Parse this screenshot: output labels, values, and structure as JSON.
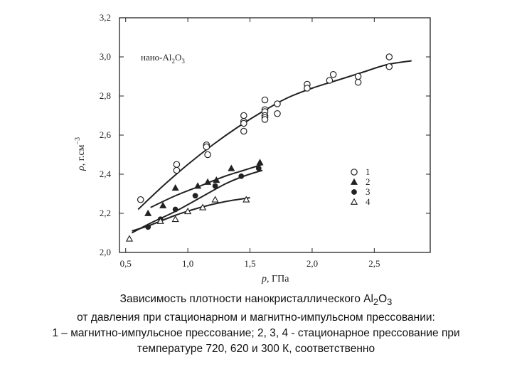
{
  "chart_data": {
    "type": "scatter",
    "inset_label": "нано-Al",
    "inset_sub": "2",
    "inset_O": "O",
    "inset_sub2": "3",
    "xlabel_var": "p",
    "xlabel_unit": ", ГПа",
    "ylabel_var": "ρ",
    "ylabel_unit": ", г.см",
    "ylabel_exp": "−3",
    "xlim": [
      0.45,
      2.95
    ],
    "ylim": [
      2.0,
      3.2
    ],
    "xticks": [
      {
        "v": 0.5,
        "label": "0,5"
      },
      {
        "v": 1.0,
        "label": "1,0"
      },
      {
        "v": 1.5,
        "label": "1,5"
      },
      {
        "v": 2.0,
        "label": "2,0"
      },
      {
        "v": 2.5,
        "label": "2,5"
      }
    ],
    "yticks": [
      {
        "v": 2.0,
        "label": "2,0"
      },
      {
        "v": 2.2,
        "label": "2,2"
      },
      {
        "v": 2.4,
        "label": "2,4"
      },
      {
        "v": 2.6,
        "label": "2,6"
      },
      {
        "v": 2.8,
        "label": "2,8"
      },
      {
        "v": 3.0,
        "label": "3,0"
      },
      {
        "v": 3.2,
        "label": "3,2"
      }
    ],
    "series": [
      {
        "name": "1",
        "marker": "circle-open",
        "points": [
          [
            0.62,
            2.27
          ],
          [
            0.91,
            2.45
          ],
          [
            0.91,
            2.42
          ],
          [
            1.15,
            2.55
          ],
          [
            1.15,
            2.54
          ],
          [
            1.16,
            2.5
          ],
          [
            1.45,
            2.7
          ],
          [
            1.45,
            2.67
          ],
          [
            1.45,
            2.66
          ],
          [
            1.45,
            2.62
          ],
          [
            1.62,
            2.78
          ],
          [
            1.62,
            2.73
          ],
          [
            1.62,
            2.72
          ],
          [
            1.62,
            2.7
          ],
          [
            1.62,
            2.69
          ],
          [
            1.62,
            2.68
          ],
          [
            1.72,
            2.76
          ],
          [
            1.72,
            2.71
          ],
          [
            1.96,
            2.86
          ],
          [
            1.96,
            2.84
          ],
          [
            2.14,
            2.88
          ],
          [
            2.17,
            2.91
          ],
          [
            2.37,
            2.9
          ],
          [
            2.37,
            2.87
          ],
          [
            2.62,
            3.0
          ],
          [
            2.62,
            2.95
          ]
        ],
        "curve": [
          [
            0.6,
            2.22
          ],
          [
            0.8,
            2.34
          ],
          [
            1.0,
            2.45
          ],
          [
            1.2,
            2.55
          ],
          [
            1.4,
            2.64
          ],
          [
            1.6,
            2.72
          ],
          [
            1.8,
            2.79
          ],
          [
            2.0,
            2.84
          ],
          [
            2.2,
            2.88
          ],
          [
            2.4,
            2.92
          ],
          [
            2.6,
            2.96
          ],
          [
            2.8,
            2.98
          ]
        ]
      },
      {
        "name": "2",
        "marker": "triangle-filled",
        "points": [
          [
            0.68,
            2.2
          ],
          [
            0.8,
            2.24
          ],
          [
            0.9,
            2.33
          ],
          [
            1.08,
            2.34
          ],
          [
            1.16,
            2.36
          ],
          [
            1.23,
            2.37
          ],
          [
            1.35,
            2.43
          ],
          [
            1.58,
            2.46
          ]
        ],
        "curve": [
          [
            0.7,
            2.23
          ],
          [
            0.9,
            2.29
          ],
          [
            1.1,
            2.34
          ],
          [
            1.3,
            2.39
          ],
          [
            1.45,
            2.42
          ],
          [
            1.6,
            2.45
          ]
        ]
      },
      {
        "name": "3",
        "marker": "circle-filled",
        "points": [
          [
            0.68,
            2.13
          ],
          [
            0.78,
            2.17
          ],
          [
            0.9,
            2.22
          ],
          [
            1.06,
            2.29
          ],
          [
            1.22,
            2.34
          ],
          [
            1.43,
            2.39
          ],
          [
            1.57,
            2.43
          ]
        ],
        "curve": [
          [
            0.55,
            2.1
          ],
          [
            0.7,
            2.15
          ],
          [
            0.9,
            2.21
          ],
          [
            1.1,
            2.28
          ],
          [
            1.3,
            2.35
          ],
          [
            1.45,
            2.39
          ],
          [
            1.6,
            2.42
          ]
        ]
      },
      {
        "name": "4",
        "marker": "triangle-open",
        "points": [
          [
            0.53,
            2.07
          ],
          [
            0.78,
            2.16
          ],
          [
            0.9,
            2.17
          ],
          [
            1.0,
            2.21
          ],
          [
            1.12,
            2.23
          ],
          [
            1.22,
            2.27
          ],
          [
            1.47,
            2.27
          ]
        ],
        "curve": [
          [
            0.55,
            2.11
          ],
          [
            0.7,
            2.14
          ],
          [
            0.9,
            2.19
          ],
          [
            1.1,
            2.23
          ],
          [
            1.3,
            2.26
          ],
          [
            1.5,
            2.28
          ]
        ]
      }
    ]
  },
  "caption": {
    "line1_a": "Зависимость плотности нанокристаллического Al",
    "line1_sub": "2",
    "line1_b": "O",
    "line1_sub2": "3",
    "line2": "от давления при стационарном и магнитно-импульсном прессовании:",
    "line3": "1 – магнитно-импульсное прессование; 2, 3, 4 - стационарное прессование при",
    "line4": "температуре 720, 620 и 300 К, соответственно"
  }
}
